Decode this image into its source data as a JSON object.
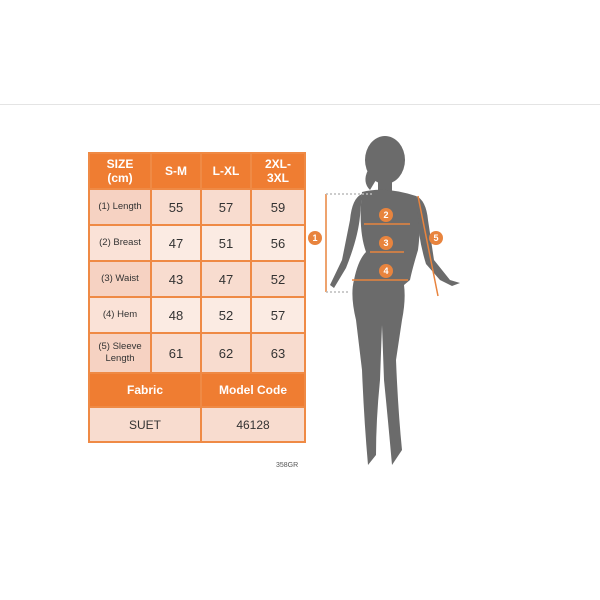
{
  "table": {
    "header": [
      "SIZE\n(cm)",
      "S-M",
      "L-XL",
      "2XL-\n3XL"
    ],
    "rows": [
      {
        "label": "(1) Length",
        "values": [
          "55",
          "57",
          "59"
        ]
      },
      {
        "label": "(2) Breast",
        "values": [
          "47",
          "51",
          "56"
        ]
      },
      {
        "label": "(3) Waist",
        "values": [
          "43",
          "47",
          "52"
        ]
      },
      {
        "label": "(4) Hem",
        "values": [
          "48",
          "52",
          "57"
        ]
      },
      {
        "label": "(5) Sleeve Length",
        "values": [
          "61",
          "62",
          "63"
        ]
      }
    ],
    "fabric_label": "Fabric",
    "model_code_label": "Model Code",
    "fabric_value": "SUET",
    "model_code_value": "46128"
  },
  "product_code": "358GR",
  "figure": {
    "markers": [
      "1",
      "2",
      "3",
      "4",
      "5"
    ]
  },
  "colors": {
    "accent": "#ef7d32",
    "silhouette": "#6b6b6b"
  }
}
